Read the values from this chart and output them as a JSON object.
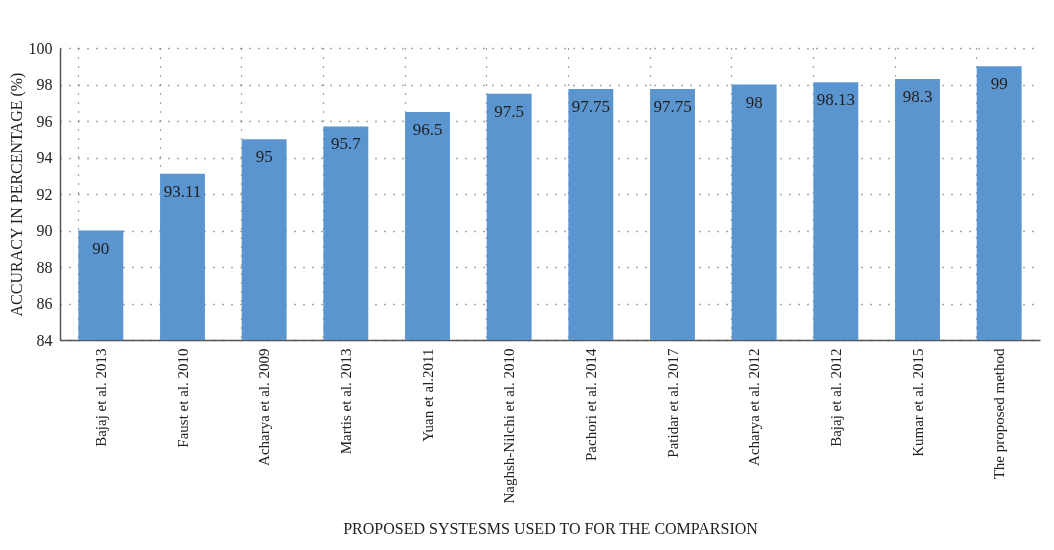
{
  "chart_data": {
    "type": "bar",
    "xlabel": "PROPOSED SYSTESMS USED TO FOR THE COMPARSION",
    "ylabel": "ACCURACY IN PERCENTAGE (%)",
    "categories": [
      "Bajaj et al. 2013",
      "Faust et al. 2010",
      "Acharya et al. 2009",
      "Martis et al. 2013",
      "Yuan et al.2011",
      "Naghsh-Nilchi et al. 2010",
      "Pachori et al. 2014",
      "Patidar et al. 2017",
      "Acharya et al. 2012",
      "Bajaj et al. 2012",
      "Kumar et al. 2015",
      "The proposed method"
    ],
    "values": [
      90,
      93.11,
      95,
      95.7,
      96.5,
      97.5,
      97.75,
      97.75,
      98,
      98.13,
      98.3,
      99
    ],
    "color": "#5b95d0",
    "ylim": [
      84,
      100
    ],
    "yticks": [
      84,
      86,
      88,
      90,
      92,
      94,
      96,
      98,
      100
    ],
    "grid": true,
    "data_labels": true
  }
}
